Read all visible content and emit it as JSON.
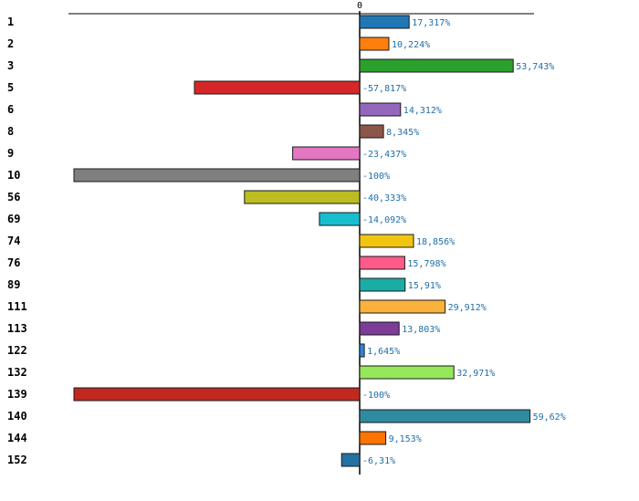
{
  "chart_data": {
    "type": "bar",
    "orientation": "horizontal",
    "title": "",
    "xlabel": "",
    "ylabel": "",
    "xlim": [
      -100,
      60
    ],
    "zero_tick_label": "0",
    "grid": false,
    "legend": "none",
    "categories": [
      "1",
      "2",
      "3",
      "5",
      "6",
      "8",
      "9",
      "10",
      "56",
      "69",
      "74",
      "76",
      "89",
      "111",
      "113",
      "122",
      "132",
      "139",
      "140",
      "144",
      "152"
    ],
    "values": [
      17.317,
      10.224,
      53.743,
      -57.817,
      14.312,
      8.345,
      -23.437,
      -100,
      -40.333,
      -14.092,
      18.856,
      15.798,
      15.91,
      29.912,
      13.803,
      1.645,
      32.971,
      -100,
      59.62,
      9.153,
      -6.31
    ],
    "value_labels": [
      "17,317%",
      "10,224%",
      "53,743%",
      "-57,817%",
      "14,312%",
      "8,345%",
      "-23,437%",
      "-100%",
      "-40,333%",
      "-14,092%",
      "18,856%",
      "15,798%",
      "15,91%",
      "29,912%",
      "13,803%",
      "1,645%",
      "32,971%",
      "-100%",
      "59,62%",
      "9,153%",
      "-6,31%"
    ],
    "colors": [
      "#1f77b4",
      "#ff7f0e",
      "#2ca02c",
      "#d62728",
      "#9467bd",
      "#8c564b",
      "#e377c2",
      "#7f7f7f",
      "#bcbd22",
      "#17becf",
      "#f1c40f",
      "#ff5b8a",
      "#1aada6",
      "#fbb13c",
      "#7d3c98",
      "#2e86de",
      "#94e85a",
      "#c0291e",
      "#2e8ba0",
      "#ff7300",
      "#2471a3"
    ]
  }
}
